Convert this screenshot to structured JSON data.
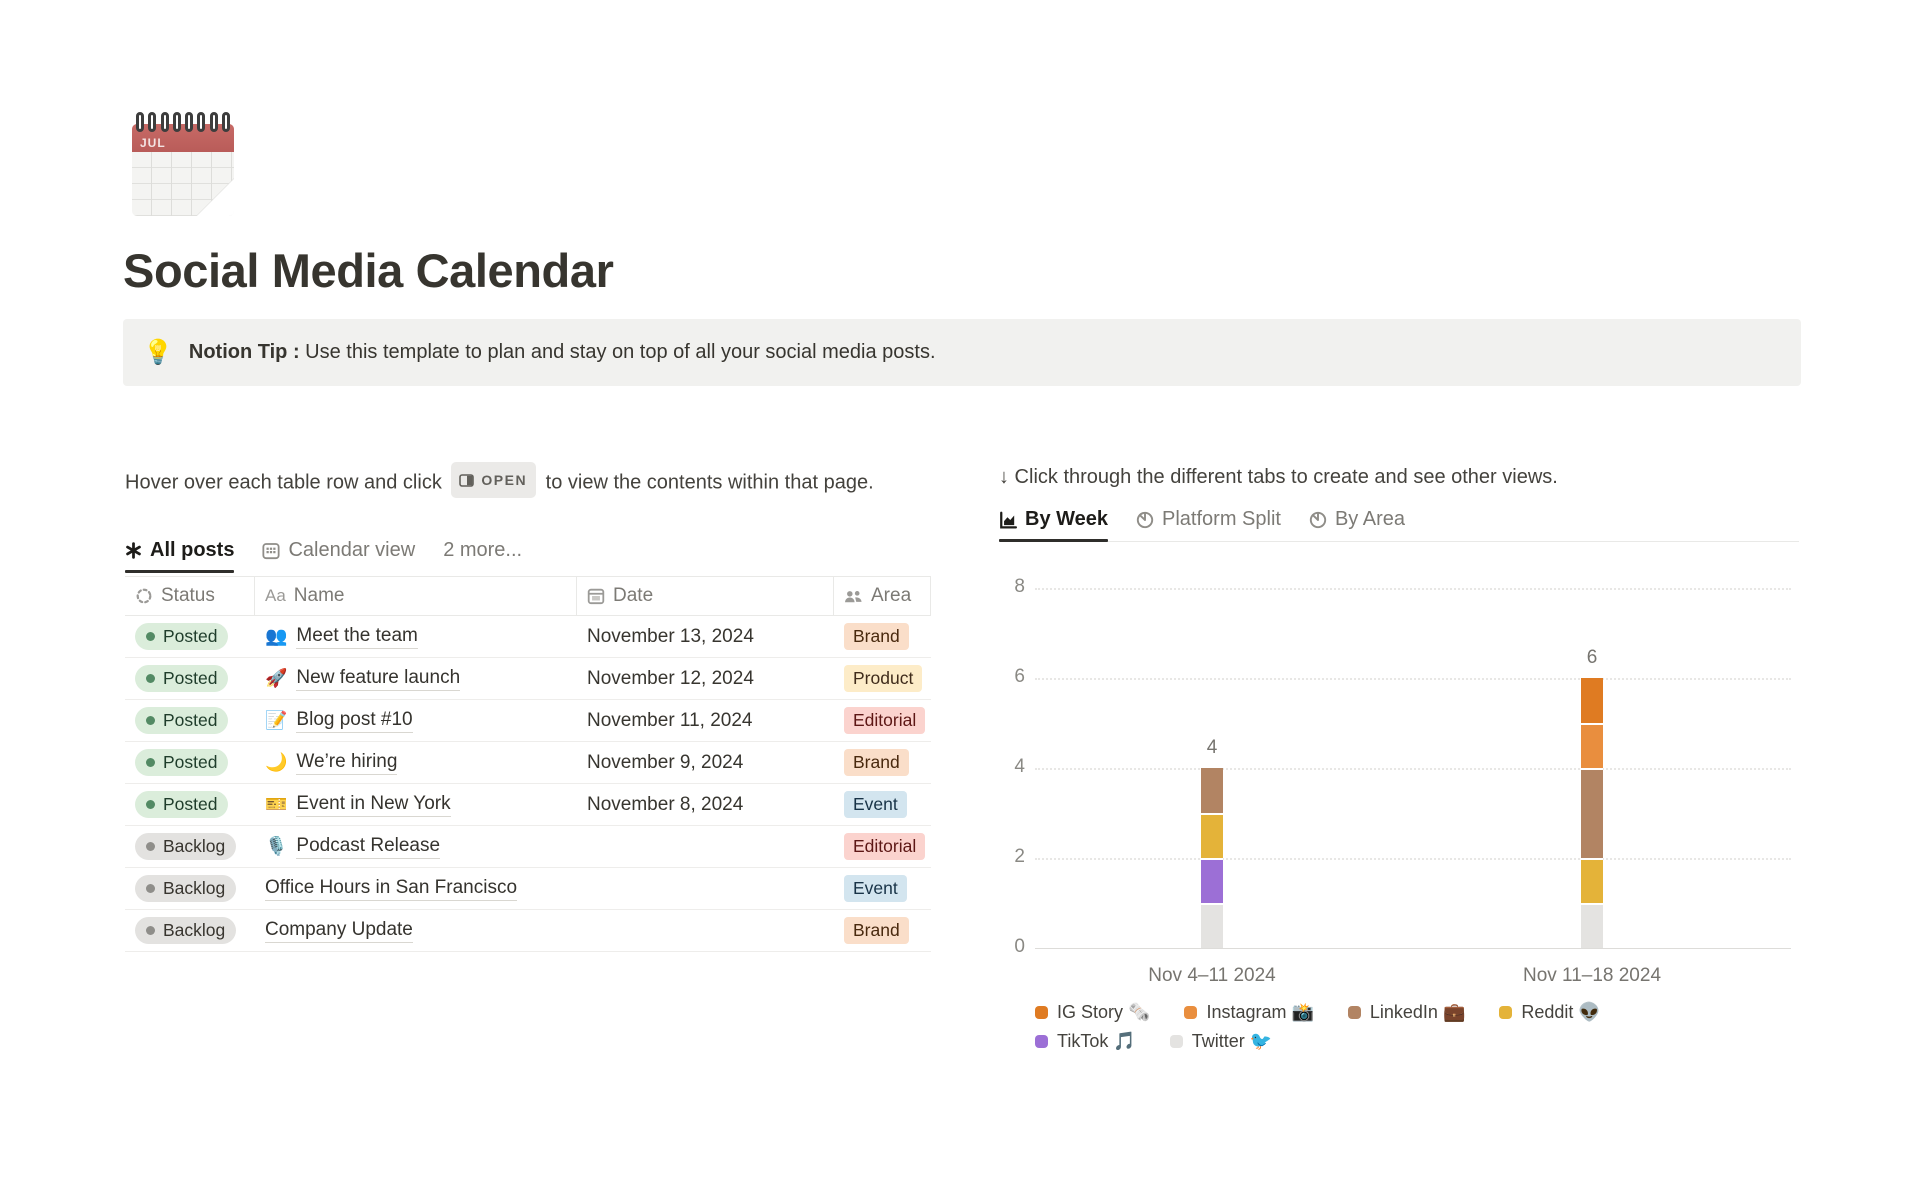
{
  "page": {
    "icon": "spiral-calendar-emoji",
    "icon_label": "JUL",
    "title": "Social Media Calendar"
  },
  "callout": {
    "emoji": "💡",
    "bold_text": "Notion Tip :",
    "text": "Use this template to plan and stay on top of all your social media posts."
  },
  "left": {
    "instruction_pre": "Hover over each table row and click",
    "open_badge_label": "OPEN",
    "instruction_post": "to view the contents within that page.",
    "tabs": [
      {
        "label": "All posts",
        "icon": "asterisk-view-icon",
        "active": true
      },
      {
        "label": "Calendar view",
        "icon": "calendar-view-icon",
        "active": false
      },
      {
        "label": "2 more...",
        "icon": "",
        "active": false
      }
    ],
    "table": {
      "headers": [
        {
          "label": "Status",
          "icon": "status-spinner-icon"
        },
        {
          "label": "Name",
          "icon": "Aa"
        },
        {
          "label": "Date",
          "icon": "calendar-icon"
        },
        {
          "label": "Area",
          "icon": "people-icon"
        }
      ],
      "rows": [
        {
          "status": "Posted",
          "status_color": "green",
          "emoji": "👥",
          "name": "Meet the team",
          "date": "November 13, 2024",
          "area": "Brand",
          "area_color": "orange"
        },
        {
          "status": "Posted",
          "status_color": "green",
          "emoji": "🚀",
          "name": "New feature launch",
          "date": "November 12, 2024",
          "area": "Product",
          "area_color": "yellow"
        },
        {
          "status": "Posted",
          "status_color": "green",
          "emoji": "📝",
          "name": "Blog post #10",
          "date": "November 11, 2024",
          "area": "Editorial",
          "area_color": "red"
        },
        {
          "status": "Posted",
          "status_color": "green",
          "emoji": "🌙",
          "name": "We’re hiring",
          "date": "November 9, 2024",
          "area": "Brand",
          "area_color": "orange"
        },
        {
          "status": "Posted",
          "status_color": "green",
          "emoji": "🎫",
          "name": "Event in New York",
          "date": "November 8, 2024",
          "area": "Event",
          "area_color": "blue"
        },
        {
          "status": "Backlog",
          "status_color": "gray",
          "emoji": "🎙️",
          "name": "Podcast Release",
          "date": "",
          "area": "Editorial",
          "area_color": "red"
        },
        {
          "status": "Backlog",
          "status_color": "gray",
          "emoji": "",
          "name": "Office Hours in San Francisco",
          "date": "",
          "area": "Event",
          "area_color": "blue"
        },
        {
          "status": "Backlog",
          "status_color": "gray",
          "emoji": "",
          "name": "Company Update",
          "date": "",
          "area": "Brand",
          "area_color": "orange"
        }
      ]
    }
  },
  "right": {
    "instruction": "↓ Click through the different tabs to create and see other views.",
    "tabs": [
      {
        "label": "By Week",
        "icon": "bar-chart-icon",
        "active": true
      },
      {
        "label": "Platform Split",
        "icon": "pie-chart-icon",
        "active": false
      },
      {
        "label": "By Area",
        "icon": "pie-chart-icon",
        "active": false
      }
    ],
    "chart_data": {
      "type": "bar",
      "stacked": true,
      "title": "",
      "xlabel": "",
      "ylabel": "",
      "categories": [
        "Nov 4–11 2024",
        "Nov 11–18 2024"
      ],
      "series": [
        {
          "name": "IG Story",
          "emoji": "🗞️",
          "color": "#df7b22",
          "values": [
            0,
            1
          ]
        },
        {
          "name": "Instagram",
          "emoji": "📸",
          "color": "#e98e3e",
          "values": [
            0,
            1
          ]
        },
        {
          "name": "LinkedIn",
          "emoji": "💼",
          "color": "#b28463",
          "values": [
            1,
            2
          ]
        },
        {
          "name": "Reddit",
          "emoji": "👽",
          "color": "#e4b339",
          "values": [
            1,
            1
          ]
        },
        {
          "name": "TikTok",
          "emoji": "🎵",
          "color": "#9c6fd6",
          "values": [
            1,
            0
          ]
        },
        {
          "name": "Twitter",
          "emoji": "🐦",
          "color": "#e4e3e1",
          "values": [
            1,
            1
          ]
        }
      ],
      "totals": [
        4,
        6
      ],
      "ylim": [
        0,
        8
      ],
      "yticks": [
        0,
        2,
        4,
        6,
        8
      ],
      "grid": "horizontal-dotted",
      "legend_position": "bottom"
    }
  }
}
